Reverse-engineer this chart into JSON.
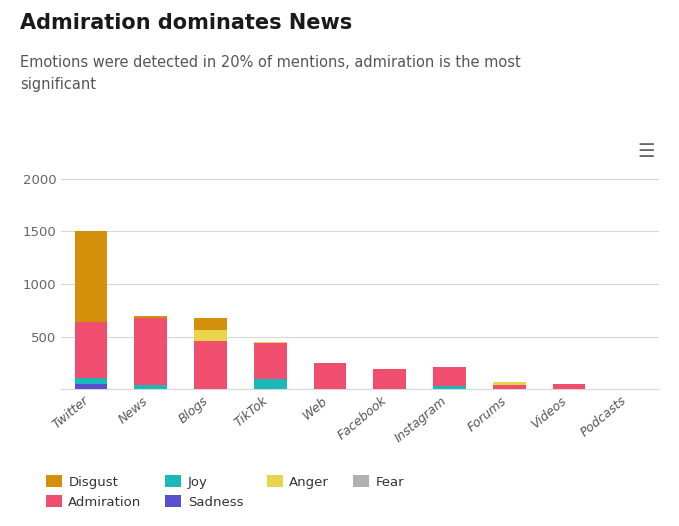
{
  "title": "Admiration dominates News",
  "subtitle": "Emotions were detected in 20% of mentions, admiration is the most\nsignificant",
  "categories": [
    "Twitter",
    "News",
    "Blogs",
    "TikTok",
    "Web",
    "Facebook",
    "Instagram",
    "Forums",
    "Videos",
    "Podcasts"
  ],
  "emotions": {
    "Admiration": {
      "color": "#f04e6e",
      "values": [
        530,
        630,
        460,
        340,
        245,
        195,
        180,
        40,
        48,
        0
      ]
    },
    "Disgust": {
      "color": "#d4900a",
      "values": [
        870,
        20,
        120,
        0,
        0,
        0,
        0,
        0,
        0,
        0
      ]
    },
    "Joy": {
      "color": "#1ab8b8",
      "values": [
        55,
        45,
        0,
        95,
        0,
        0,
        30,
        0,
        0,
        0
      ]
    },
    "Anger": {
      "color": "#e8d44d",
      "values": [
        0,
        0,
        100,
        18,
        0,
        0,
        0,
        28,
        0,
        0
      ]
    },
    "Fear": {
      "color": "#b0b0b0",
      "values": [
        0,
        0,
        0,
        0,
        0,
        0,
        0,
        0,
        0,
        0
      ]
    },
    "Sadness": {
      "color": "#5a4fcf",
      "values": [
        50,
        0,
        0,
        0,
        0,
        0,
        0,
        0,
        0,
        0
      ]
    }
  },
  "ylim": [
    0,
    2200
  ],
  "yticks": [
    0,
    500,
    1000,
    1500,
    2000
  ],
  "background_color": "#ffffff",
  "legend_order": [
    "Disgust",
    "Admiration",
    "Joy",
    "Sadness",
    "Anger",
    "Fear"
  ],
  "grid_color": "#d8d8d8",
  "figsize": [
    6.79,
    5.26
  ],
  "dpi": 100
}
